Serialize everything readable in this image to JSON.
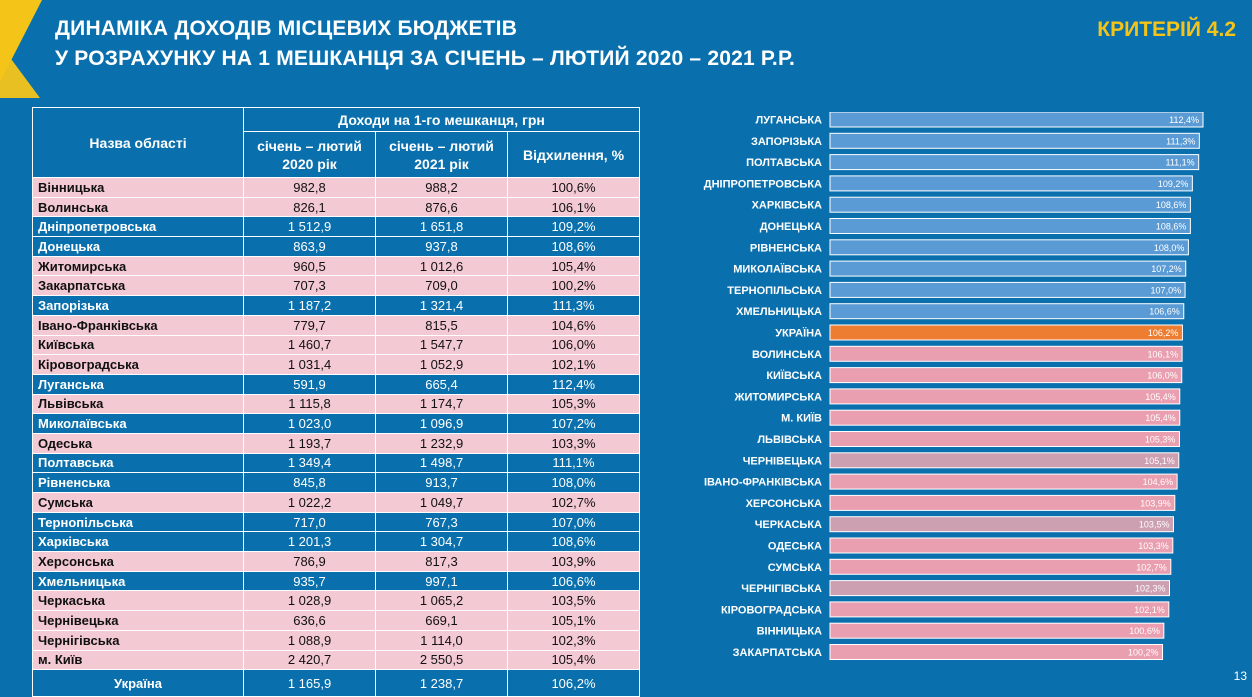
{
  "header": {
    "title_line1": "ДИНАМІКА ДОХОДІВ МІСЦЕВИХ БЮДЖЕТІВ",
    "title_line2": "У РОЗРАХУНКУ НА 1 МЕШКАНЦЯ ЗА СІЧЕНЬ – ЛЮТИЙ 2020 – 2021 Р.Р.",
    "criterion": "КРИТЕРІЙ 4.2"
  },
  "page_number": "13",
  "table": {
    "col_name": "Назва області",
    "group_header": "Доходи на 1-го мешканця, грн",
    "col_2020": "січень – лютий 2020 рік",
    "col_2021": "січень – лютий 2021 рік",
    "col_dev": "Відхилення, %",
    "rows": [
      {
        "name": "Вінницька",
        "v2020": "982,8",
        "v2021": "988,2",
        "dev": "100,6%",
        "style": "pink"
      },
      {
        "name": "Волинська",
        "v2020": "826,1",
        "v2021": "876,6",
        "dev": "106,1%",
        "style": "pink"
      },
      {
        "name": "Дніпропетровська",
        "v2020": "1 512,9",
        "v2021": "1 651,8",
        "dev": "109,2%",
        "style": "blue"
      },
      {
        "name": "Донецька",
        "v2020": "863,9",
        "v2021": "937,8",
        "dev": "108,6%",
        "style": "blue"
      },
      {
        "name": "Житомирська",
        "v2020": "960,5",
        "v2021": "1 012,6",
        "dev": "105,4%",
        "style": "pink"
      },
      {
        "name": "Закарпатська",
        "v2020": "707,3",
        "v2021": "709,0",
        "dev": "100,2%",
        "style": "pink"
      },
      {
        "name": "Запорізька",
        "v2020": "1 187,2",
        "v2021": "1 321,4",
        "dev": "111,3%",
        "style": "blue"
      },
      {
        "name": "Івано-Франківська",
        "v2020": "779,7",
        "v2021": "815,5",
        "dev": "104,6%",
        "style": "pink"
      },
      {
        "name": "Київська",
        "v2020": "1 460,7",
        "v2021": "1 547,7",
        "dev": "106,0%",
        "style": "pink"
      },
      {
        "name": "Кіровоградська",
        "v2020": "1 031,4",
        "v2021": "1 052,9",
        "dev": "102,1%",
        "style": "pink"
      },
      {
        "name": "Луганська",
        "v2020": "591,9",
        "v2021": "665,4",
        "dev": "112,4%",
        "style": "blue"
      },
      {
        "name": "Львівська",
        "v2020": "1 115,8",
        "v2021": "1 174,7",
        "dev": "105,3%",
        "style": "pink"
      },
      {
        "name": "Миколаївська",
        "v2020": "1 023,0",
        "v2021": "1 096,9",
        "dev": "107,2%",
        "style": "blue"
      },
      {
        "name": "Одеська",
        "v2020": "1 193,7",
        "v2021": "1 232,9",
        "dev": "103,3%",
        "style": "pink"
      },
      {
        "name": "Полтавська",
        "v2020": "1 349,4",
        "v2021": "1 498,7",
        "dev": "111,1%",
        "style": "blue"
      },
      {
        "name": "Рівненська",
        "v2020": "845,8",
        "v2021": "913,7",
        "dev": "108,0%",
        "style": "blue"
      },
      {
        "name": "Сумська",
        "v2020": "1 022,2",
        "v2021": "1 049,7",
        "dev": "102,7%",
        "style": "pink"
      },
      {
        "name": "Тернопільська",
        "v2020": "717,0",
        "v2021": "767,3",
        "dev": "107,0%",
        "style": "blue"
      },
      {
        "name": "Харківська",
        "v2020": "1 201,3",
        "v2021": "1 304,7",
        "dev": "108,6%",
        "style": "blue"
      },
      {
        "name": "Херсонська",
        "v2020": "786,9",
        "v2021": "817,3",
        "dev": "103,9%",
        "style": "pink"
      },
      {
        "name": "Хмельницька",
        "v2020": "935,7",
        "v2021": "997,1",
        "dev": "106,6%",
        "style": "blue"
      },
      {
        "name": "Черкаська",
        "v2020": "1 028,9",
        "v2021": "1 065,2",
        "dev": "103,5%",
        "style": "pink"
      },
      {
        "name": "Чернівецька",
        "v2020": "636,6",
        "v2021": "669,1",
        "dev": "105,1%",
        "style": "pink"
      },
      {
        "name": "Чернігівська",
        "v2020": "1 088,9",
        "v2021": "1 114,0",
        "dev": "102,3%",
        "style": "pink"
      },
      {
        "name": "м. Київ",
        "v2020": "2 420,7",
        "v2021": "2 550,5",
        "dev": "105,4%",
        "style": "pink"
      }
    ],
    "total": {
      "name": "Україна",
      "v2020": "1 165,9",
      "v2021": "1 238,7",
      "dev": "106,2%"
    }
  },
  "chart_data": {
    "type": "bar",
    "orientation": "horizontal",
    "categories": [
      "ЛУГАНСЬКА",
      "ЗАПОРІЗЬКА",
      "ПОЛТАВСЬКА",
      "ДНІПРОПЕТРОВСЬКА",
      "ХАРКІВСЬКА",
      "ДОНЕЦЬКА",
      "РІВНЕНСЬКА",
      "МИКОЛАЇВСЬКА",
      "ТЕРНОПІЛЬСЬКА",
      "ХМЕЛЬНИЦЬКА",
      "УКРАЇНА",
      "ВОЛИНСЬКА",
      "КИЇВСЬКА",
      "ЖИТОМИРСЬКА",
      "М. КИЇВ",
      "ЛЬВІВСЬКА",
      "ЧЕРНІВЕЦЬКА",
      "ІВАНО-ФРАНКІВСЬКА",
      "ХЕРСОНСЬКА",
      "ЧЕРКАСЬКА",
      "ОДЕСЬКА",
      "СУМСЬКА",
      "ЧЕРНІГІВСЬКА",
      "КІРОВОГРАДСЬКА",
      "ВІННИЦЬКА",
      "ЗАКАРПАТСЬКА"
    ],
    "values": [
      112.4,
      111.3,
      111.1,
      109.2,
      108.6,
      108.6,
      108.0,
      107.2,
      107.0,
      106.6,
      106.2,
      106.1,
      106.0,
      105.4,
      105.4,
      105.3,
      105.1,
      104.6,
      103.9,
      103.5,
      103.3,
      102.7,
      102.3,
      102.1,
      100.6,
      100.2
    ],
    "value_labels": [
      "112,4%",
      "111,3%",
      "111,1%",
      "109,2%",
      "108,6%",
      "108,6%",
      "108,0%",
      "107,2%",
      "107,0%",
      "106,6%",
      "106,2%",
      "106,1%",
      "106,0%",
      "105,4%",
      "105,4%",
      "105,3%",
      "105,1%",
      "104,6%",
      "103,9%",
      "103,5%",
      "103,3%",
      "102,7%",
      "102,3%",
      "102,1%",
      "100,6%",
      "100,2%"
    ],
    "bar_colors": [
      "#5b9bd5",
      "#5b9bd5",
      "#5b9bd5",
      "#5b9bd5",
      "#5b9bd5",
      "#5b9bd5",
      "#5b9bd5",
      "#5b9bd5",
      "#5b9bd5",
      "#5b9bd5",
      "#ed7d31",
      "#ea9fb0",
      "#ea9fb0",
      "#ea9fb0",
      "#ea9fb0",
      "#ea9fb0",
      "#cc9fb1",
      "#ea9fb0",
      "#ea9fb0",
      "#cc9fb1",
      "#ea9fb0",
      "#ea9fb0",
      "#cc9fb1",
      "#ea9fb0",
      "#ea9fb0",
      "#ea9fb0"
    ],
    "xlim": [
      0,
      112.4
    ],
    "grid": false,
    "legend": "none"
  },
  "colors": {
    "background": "#0a70ad",
    "accent_yellow": "#f4c419",
    "table_pink": "#f3c9d3",
    "bar_blue": "#5b9bd5",
    "bar_orange": "#ed7d31",
    "bar_pink": "#ea9fb0"
  }
}
